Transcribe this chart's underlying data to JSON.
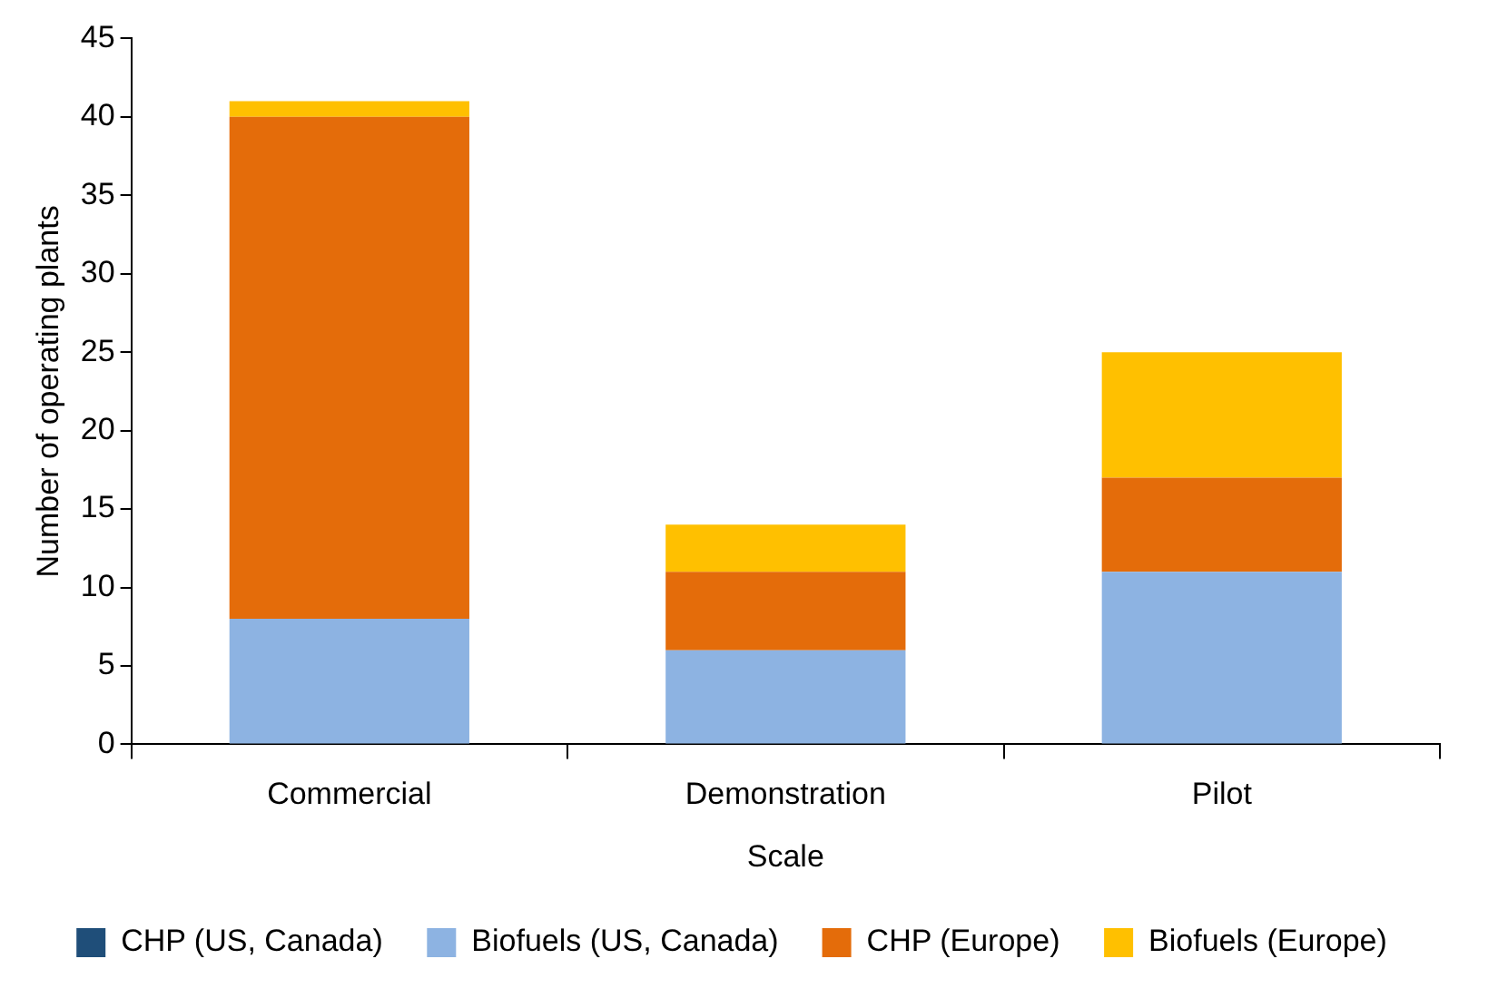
{
  "chart_data": {
    "type": "bar",
    "stacked": true,
    "xlabel": "Scale",
    "ylabel": "Number of operating plants",
    "categories": [
      "Commercial",
      "Demonstration",
      "Pilot"
    ],
    "series": [
      {
        "name": "CHP (US, Canada)",
        "color": "#1f4e79",
        "values": [
          0,
          0,
          0
        ]
      },
      {
        "name": "Biofuels (US, Canada)",
        "color": "#8db3e2",
        "values": [
          8,
          6,
          11
        ]
      },
      {
        "name": "CHP (Europe)",
        "color": "#e46c0a",
        "values": [
          32,
          5,
          6
        ]
      },
      {
        "name": "Biofuels (Europe)",
        "color": "#ffc000",
        "values": [
          1,
          3,
          8
        ]
      }
    ],
    "ylim": [
      0,
      45
    ],
    "yticks": [
      0,
      5,
      10,
      15,
      20,
      25,
      30,
      35,
      40,
      45
    ],
    "grid": false,
    "legend": "bottom"
  }
}
